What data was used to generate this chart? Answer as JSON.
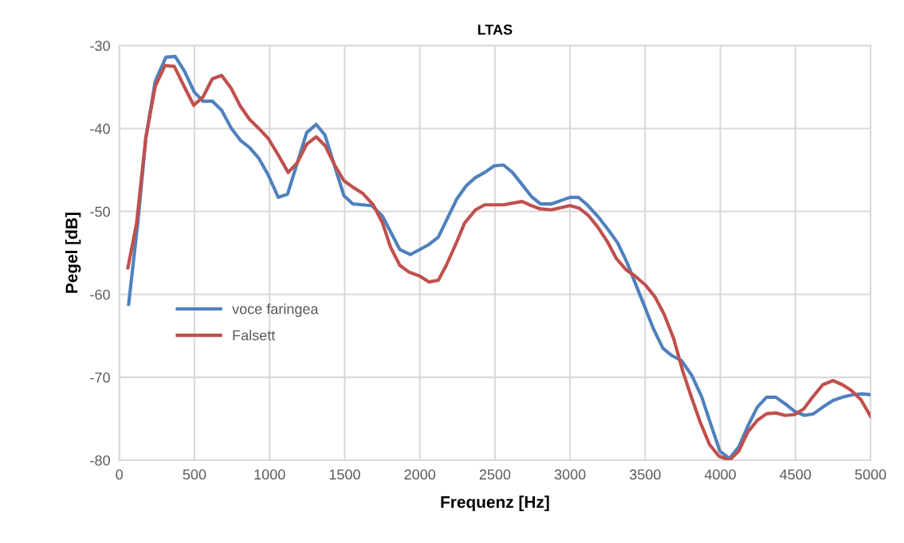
{
  "chart_data": {
    "type": "line",
    "title": "LTAS",
    "xlabel": "Frequenz [Hz]",
    "ylabel": "Pegel [dB]",
    "xlim": [
      0,
      5000
    ],
    "xticks": [
      0,
      500,
      1000,
      1500,
      2000,
      2500,
      3000,
      3500,
      4000,
      4500,
      5000
    ],
    "ylim": [
      -80,
      -30
    ],
    "yticks": [
      -80,
      -70,
      -60,
      -50,
      -40,
      -30
    ],
    "grid": true,
    "legend": "left",
    "marker": "none",
    "line_style": "solid",
    "series": [
      {
        "name": "voce faringea",
        "color": "#4f81bd",
        "x": [
          62,
          124,
          177,
          239,
          310,
          372,
          434,
          499,
          557,
          619,
          681,
          743,
          805,
          867,
          929,
          991,
          1058,
          1120,
          1247,
          1310,
          1369,
          1495,
          1555,
          1619,
          1681,
          1752,
          1867,
          1937,
          2060,
          2123,
          2246,
          2309,
          2371,
          2432,
          2495,
          2557,
          2617,
          2743,
          2803,
          2875,
          3000,
          3056,
          3114,
          3185,
          3254,
          3317,
          3380,
          3486,
          3556,
          3618,
          3679,
          3742,
          3811,
          3875,
          3937,
          3997,
          4061,
          4123,
          4183,
          4246,
          4308,
          4369,
          4432,
          4494,
          4561,
          4621,
          4682,
          4750,
          4813,
          4883,
          4945,
          5000
        ],
        "values": [
          -61.2,
          -51.2,
          -41.1,
          -34.3,
          -31.4,
          -31.3,
          -33.1,
          -35.6,
          -36.7,
          -36.7,
          -37.8,
          -39.9,
          -41.4,
          -42.3,
          -43.6,
          -45.6,
          -48.3,
          -47.9,
          -40.5,
          -39.5,
          -40.8,
          -48.1,
          -49.1,
          -49.2,
          -49.3,
          -50.6,
          -54.6,
          -55.2,
          -54.0,
          -53.1,
          -48.5,
          -46.9,
          -45.9,
          -45.3,
          -44.5,
          -44.4,
          -45.3,
          -48.2,
          -49.1,
          -49.1,
          -48.3,
          -48.3,
          -49.2,
          -50.6,
          -52.2,
          -53.8,
          -56.2,
          -61.0,
          -64.2,
          -66.5,
          -67.4,
          -68.0,
          -69.8,
          -72.3,
          -75.7,
          -78.9,
          -79.8,
          -78.4,
          -75.9,
          -73.6,
          -72.4,
          -72.4,
          -73.2,
          -74.1,
          -74.6,
          -74.4,
          -73.6,
          -72.8,
          -72.4,
          -72.1,
          -72.0,
          -72.1
        ]
      },
      {
        "name": "Falsett",
        "color": "#c0504d",
        "x": [
          57,
          115,
          177,
          239,
          304,
          366,
          428,
          495,
          557,
          619,
          681,
          743,
          805,
          867,
          929,
          991,
          1058,
          1124,
          1185,
          1247,
          1310,
          1371,
          1433,
          1495,
          1557,
          1619,
          1690,
          1752,
          1805,
          1867,
          1927,
          1999,
          2060,
          2123,
          2176,
          2238,
          2298,
          2371,
          2432,
          2495,
          2557,
          2617,
          2681,
          2743,
          2803,
          2875,
          3000,
          3061,
          3123,
          3185,
          3247,
          3309,
          3371,
          3433,
          3503,
          3565,
          3626,
          3689,
          3751,
          3804,
          3866,
          3928,
          3990,
          4061,
          4123,
          4183,
          4246,
          4308,
          4369,
          4432,
          4494,
          4556,
          4618,
          4682,
          4750,
          4813,
          4873,
          4936,
          5000
        ],
        "values": [
          -56.8,
          -51.4,
          -41.0,
          -34.9,
          -32.4,
          -32.5,
          -34.8,
          -37.2,
          -36.2,
          -34.0,
          -33.6,
          -35.1,
          -37.3,
          -38.9,
          -40.0,
          -41.2,
          -43.2,
          -45.3,
          -44.1,
          -41.9,
          -41.0,
          -42.1,
          -44.4,
          -46.3,
          -47.1,
          -47.8,
          -49.2,
          -51.4,
          -54.3,
          -56.5,
          -57.3,
          -57.8,
          -58.5,
          -58.3,
          -56.5,
          -54.0,
          -51.4,
          -49.8,
          -49.2,
          -49.2,
          -49.2,
          -49.0,
          -48.8,
          -49.3,
          -49.7,
          -49.8,
          -49.3,
          -49.6,
          -50.5,
          -51.9,
          -53.6,
          -55.7,
          -57.0,
          -57.8,
          -58.9,
          -60.3,
          -62.4,
          -65.3,
          -69.3,
          -72.2,
          -75.4,
          -78.1,
          -79.5,
          -80.0,
          -78.9,
          -76.6,
          -75.2,
          -74.4,
          -74.3,
          -74.6,
          -74.5,
          -73.8,
          -72.3,
          -70.9,
          -70.4,
          -70.9,
          -71.6,
          -72.7,
          -74.7
        ]
      }
    ]
  }
}
